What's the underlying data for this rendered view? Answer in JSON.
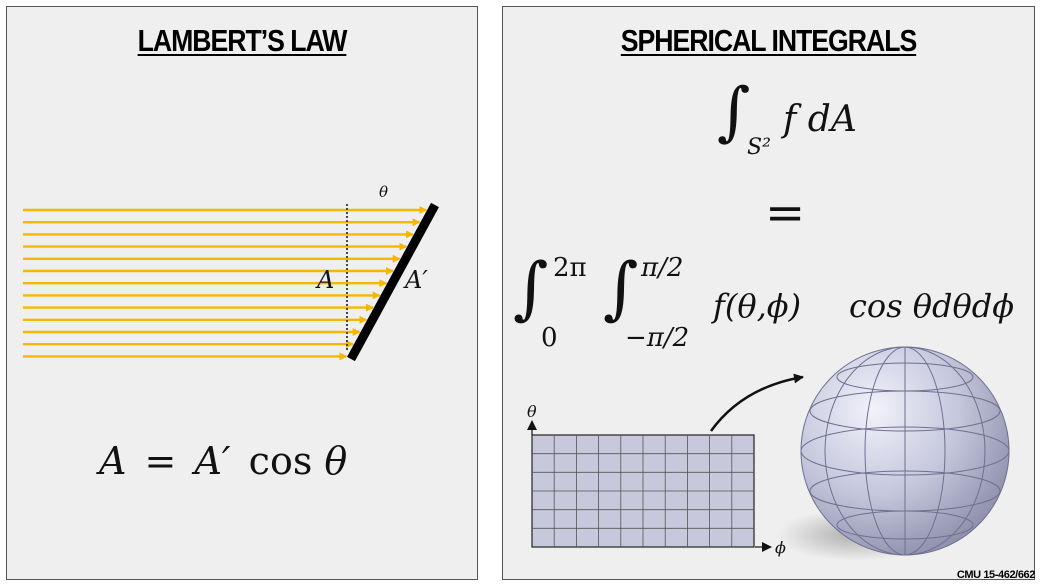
{
  "left_panel": {
    "title": "LAMBERT’S LAW",
    "theta_label": "θ",
    "area_label": "A",
    "area_prime_label": "A′",
    "equation": {
      "lhs": "A",
      "eq": "=",
      "rhs_var": "A′",
      "rhs_cos": "cos",
      "rhs_theta": "θ"
    }
  },
  "right_panel": {
    "title": "SPHERICAL INTEGRALS",
    "integral_top": {
      "integrand": "f dA",
      "domain": "S²"
    },
    "equals": "=",
    "integral_bottom": {
      "outer_upper": "2π",
      "outer_lower": "0",
      "inner_upper": "π/2",
      "inner_lower": "−π/2",
      "integrand": "f(θ,ϕ)",
      "cos_term": "cos θdθdϕ"
    },
    "grid_axis_theta": "θ",
    "grid_axis_phi": "ϕ"
  },
  "footer": "CMU 15-462/662",
  "colors": {
    "arrow": "#f5b800",
    "grid_fill": "#c8c8dc",
    "sphere": "#c4c6dc",
    "panel_bg": "#efefef"
  }
}
